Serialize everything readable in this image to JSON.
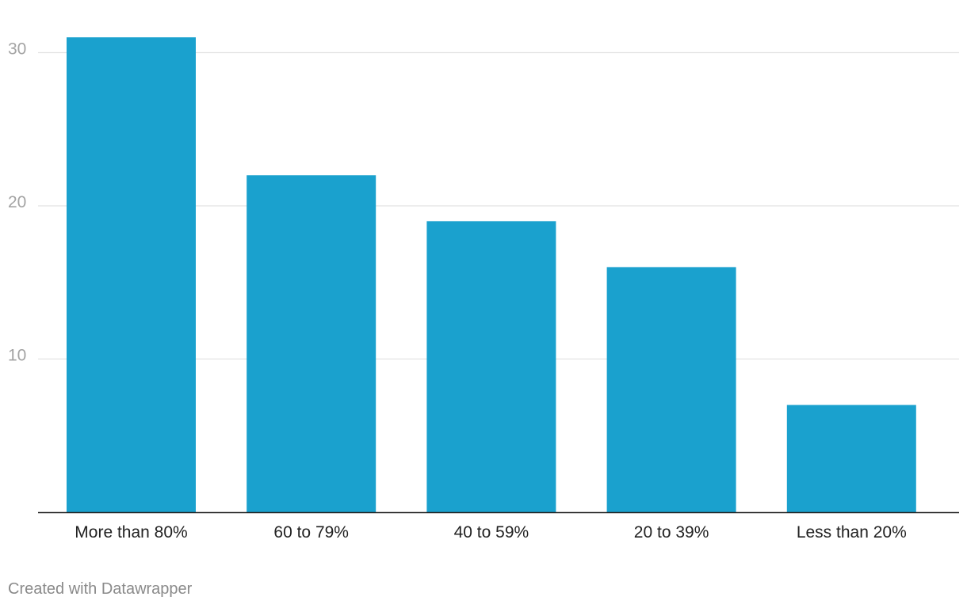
{
  "chart_data": {
    "type": "bar",
    "categories": [
      "More than 80%",
      "60 to 79%",
      "40 to 59%",
      "20 to 39%",
      "Less than 20%"
    ],
    "values": [
      31,
      22,
      19,
      16,
      7
    ],
    "ylim": [
      0,
      30
    ],
    "yticks": [
      10,
      20,
      30
    ],
    "grid": true,
    "bar_color": "#1aa1ce",
    "title": "",
    "xlabel": "",
    "ylabel": ""
  },
  "footer": {
    "credit": "Created with Datawrapper"
  }
}
